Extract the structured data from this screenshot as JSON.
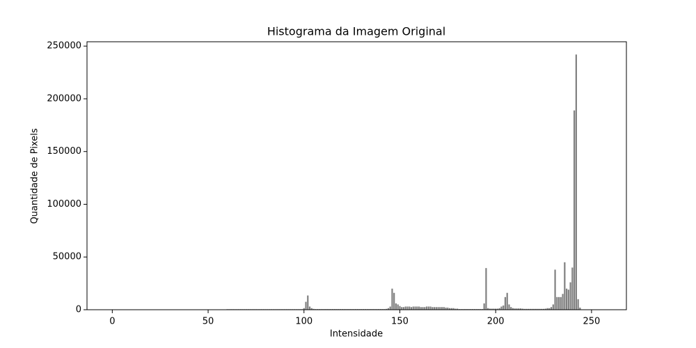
{
  "chart_data": {
    "type": "bar",
    "title": "Histograma da Imagem Original",
    "x_label": "Intensidade",
    "y_label": "Quantidade de Pixels",
    "color": "#808080",
    "bar_width": 0.8,
    "x": [
      0,
      1,
      2,
      3,
      4,
      5,
      6,
      7,
      8,
      9,
      10,
      11,
      12,
      13,
      14,
      15,
      16,
      17,
      18,
      19,
      20,
      21,
      22,
      23,
      24,
      25,
      26,
      27,
      28,
      29,
      30,
      31,
      32,
      33,
      34,
      35,
      36,
      37,
      38,
      39,
      40,
      41,
      42,
      43,
      44,
      45,
      46,
      47,
      48,
      49,
      50,
      51,
      52,
      53,
      54,
      55,
      56,
      57,
      58,
      59,
      60,
      61,
      62,
      63,
      64,
      65,
      66,
      67,
      68,
      69,
      70,
      71,
      72,
      73,
      74,
      75,
      76,
      77,
      78,
      79,
      80,
      81,
      82,
      83,
      84,
      85,
      86,
      87,
      88,
      89,
      90,
      91,
      92,
      93,
      94,
      95,
      96,
      97,
      98,
      99,
      100,
      101,
      102,
      103,
      104,
      105,
      106,
      107,
      108,
      109,
      110,
      111,
      112,
      113,
      114,
      115,
      116,
      117,
      118,
      119,
      120,
      121,
      122,
      123,
      124,
      125,
      126,
      127,
      128,
      129,
      130,
      131,
      132,
      133,
      134,
      135,
      136,
      137,
      138,
      139,
      140,
      141,
      142,
      143,
      144,
      145,
      146,
      147,
      148,
      149,
      150,
      151,
      152,
      153,
      154,
      155,
      156,
      157,
      158,
      159,
      160,
      161,
      162,
      163,
      164,
      165,
      166,
      167,
      168,
      169,
      170,
      171,
      172,
      173,
      174,
      175,
      176,
      177,
      178,
      179,
      180,
      181,
      182,
      183,
      184,
      185,
      186,
      187,
      188,
      189,
      190,
      191,
      192,
      193,
      194,
      195,
      196,
      197,
      198,
      199,
      200,
      201,
      202,
      203,
      204,
      205,
      206,
      207,
      208,
      209,
      210,
      211,
      212,
      213,
      214,
      215,
      216,
      217,
      218,
      219,
      220,
      221,
      222,
      223,
      224,
      225,
      226,
      227,
      228,
      229,
      230,
      231,
      232,
      233,
      234,
      235,
      236,
      237,
      238,
      239,
      240,
      241,
      242,
      243,
      244,
      245,
      246,
      247,
      248,
      249,
      250,
      251,
      252,
      253,
      254,
      255
    ],
    "values": [
      300,
      0,
      0,
      0,
      0,
      0,
      0,
      0,
      0,
      0,
      0,
      0,
      0,
      0,
      0,
      0,
      0,
      0,
      0,
      0,
      0,
      0,
      0,
      0,
      0,
      0,
      0,
      0,
      0,
      0,
      0,
      0,
      0,
      0,
      0,
      0,
      0,
      0,
      0,
      0,
      0,
      0,
      0,
      0,
      0,
      0,
      0,
      0,
      0,
      0,
      0,
      0,
      0,
      0,
      0,
      0,
      0,
      0,
      0,
      0,
      500,
      500,
      500,
      500,
      500,
      500,
      500,
      500,
      500,
      500,
      500,
      500,
      500,
      500,
      500,
      500,
      500,
      500,
      500,
      500,
      500,
      500,
      500,
      500,
      500,
      500,
      500,
      500,
      500,
      500,
      500,
      500,
      500,
      500,
      500,
      500,
      500,
      500,
      500,
      500,
      1500,
      7500,
      13500,
      3000,
      1500,
      800,
      600,
      600,
      600,
      600,
      600,
      600,
      600,
      600,
      600,
      600,
      600,
      600,
      600,
      600,
      600,
      600,
      600,
      600,
      600,
      600,
      600,
      600,
      600,
      600,
      600,
      600,
      600,
      600,
      600,
      600,
      600,
      600,
      600,
      600,
      600,
      600,
      600,
      800,
      1500,
      3000,
      20000,
      16000,
      6000,
      5000,
      3500,
      2500,
      2500,
      3000,
      3000,
      3000,
      2500,
      3000,
      3000,
      3000,
      3000,
      2500,
      2500,
      2500,
      3000,
      3000,
      3000,
      2500,
      2500,
      2500,
      2500,
      2500,
      2500,
      2500,
      2000,
      2000,
      1500,
      1500,
      1500,
      1000,
      1000,
      600,
      600,
      600,
      600,
      600,
      600,
      600,
      600,
      600,
      600,
      600,
      600,
      600,
      6000,
      39500,
      1500,
      1000,
      1000,
      1000,
      1000,
      1000,
      1500,
      3000,
      4000,
      12000,
      16000,
      5000,
      2500,
      1500,
      1200,
      1200,
      1200,
      1200,
      1000,
      800,
      800,
      800,
      800,
      800,
      800,
      800,
      800,
      800,
      800,
      800,
      1000,
      1500,
      1500,
      2500,
      5000,
      38000,
      12000,
      12000,
      12000,
      15000,
      45000,
      20000,
      19000,
      26000,
      40000,
      189000,
      242000,
      10000,
      2000,
      0,
      0,
      0,
      0,
      0,
      0,
      0,
      0,
      0,
      0,
      0
    ],
    "xlim": [
      -13.19,
      268.19
    ],
    "xticks": [
      0,
      50,
      100,
      150,
      200,
      250
    ],
    "ylim": [
      0,
      254100
    ],
    "yticks": [
      0,
      50000,
      100000,
      150000,
      200000,
      250000
    ]
  }
}
